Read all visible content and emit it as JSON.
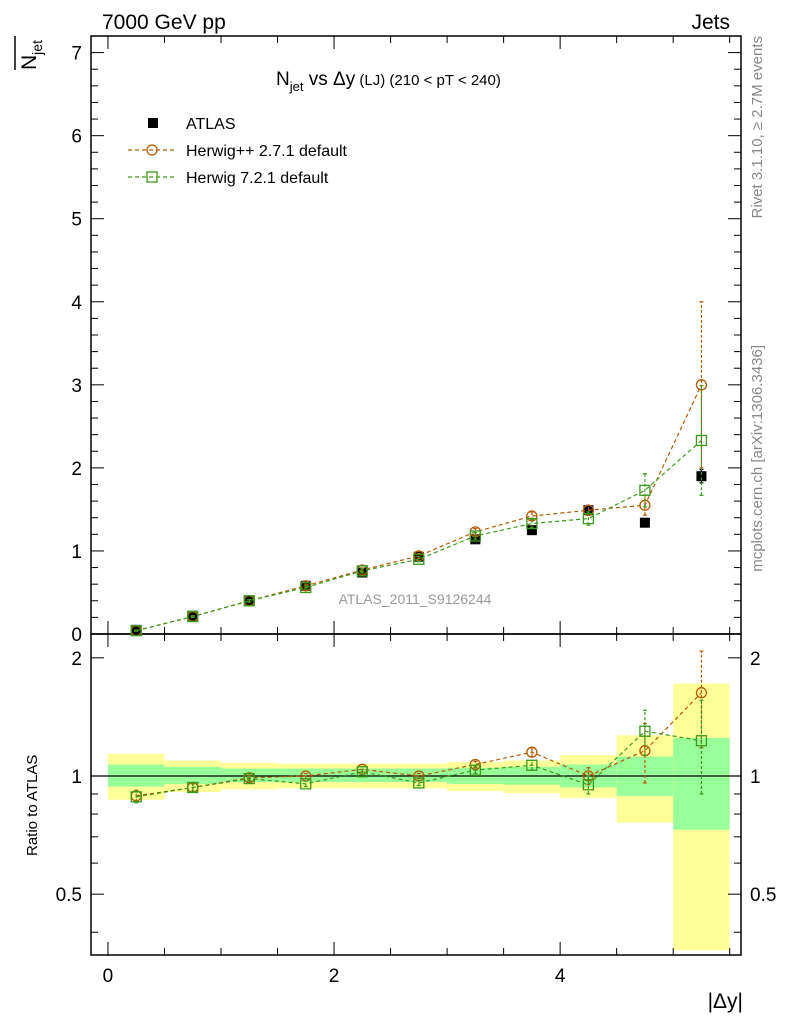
{
  "header": {
    "left_title": "7000 GeV pp",
    "right_title": "Jets",
    "plot_title_main": "N",
    "plot_title_sub": "jet",
    "plot_title_vs": " vs Δy",
    "plot_title_lj": " (LJ)",
    "plot_title_range": " (210 < pT < 240)",
    "watermark": "ATLAS_2011_S9126244",
    "side_rivet": "Rivet 3.1.10, ≥ 2.7M events",
    "side_mcplots": "mcplots.cern.ch [arXiv:1306.3436]"
  },
  "axes": {
    "ylabel_main": "N",
    "ylabel_main_sub": "jet",
    "ylabel_ratio": "Ratio to ATLAS",
    "xlabel": "|Δy|"
  },
  "colors": {
    "atlas": "#000000",
    "herwigpp": "#b35900",
    "herwig7": "#3a9a1a",
    "band_inner": "#99ff99",
    "band_outer": "#ffff99"
  },
  "chart_data": [
    {
      "type": "scatter",
      "name": "main",
      "x": [
        0.25,
        0.75,
        1.25,
        1.75,
        2.25,
        2.75,
        3.25,
        3.75,
        4.25,
        4.75,
        5.25
      ],
      "xlim": [
        -0.15,
        5.6
      ],
      "ylim": [
        0,
        7.2
      ],
      "xticks": [
        0,
        2,
        4
      ],
      "yticks": [
        0,
        1,
        2,
        3,
        4,
        5,
        6,
        7
      ],
      "ytick_labels": [
        "0",
        "1",
        "2",
        "3",
        "4",
        "5",
        "6",
        "7"
      ],
      "legend": [
        "ATLAS",
        "Herwig++ 2.7.1 default",
        "Herwig 7.2.1 default"
      ],
      "legend_position": "top-left",
      "series": [
        {
          "name": "ATLAS",
          "values": [
            0.05,
            0.22,
            0.4,
            0.58,
            0.74,
            0.93,
            1.14,
            1.25,
            1.49,
            1.34,
            1.9
          ],
          "errors": [
            0.01,
            0.01,
            0.02,
            0.02,
            0.02,
            0.03,
            0.04,
            0.04,
            0.06,
            0.05,
            0.08
          ]
        },
        {
          "name": "Herwig++ 2.7.1 default",
          "values": [
            0.04,
            0.21,
            0.4,
            0.58,
            0.77,
            0.94,
            1.23,
            1.42,
            1.49,
            1.55,
            3.0
          ],
          "errors": [
            0.005,
            0.01,
            0.015,
            0.02,
            0.025,
            0.03,
            0.04,
            0.05,
            0.06,
            0.12,
            1.0
          ]
        },
        {
          "name": "Herwig 7.2.1 default",
          "values": [
            0.04,
            0.21,
            0.4,
            0.56,
            0.76,
            0.9,
            1.18,
            1.33,
            1.39,
            1.73,
            2.33
          ],
          "errors": [
            0.005,
            0.01,
            0.015,
            0.02,
            0.025,
            0.03,
            0.04,
            0.05,
            0.08,
            0.2,
            0.66
          ]
        }
      ]
    },
    {
      "type": "scatter",
      "name": "ratio",
      "x": [
        0.25,
        0.75,
        1.25,
        1.75,
        2.25,
        2.75,
        3.25,
        3.75,
        4.25,
        4.75,
        5.25
      ],
      "bins": [
        [
          0,
          0.5
        ],
        [
          0.5,
          1.0
        ],
        [
          1.0,
          1.5
        ],
        [
          1.5,
          2.0
        ],
        [
          2.0,
          2.5
        ],
        [
          2.5,
          3.0
        ],
        [
          3.0,
          3.5
        ],
        [
          3.5,
          4.0
        ],
        [
          4.0,
          4.5
        ],
        [
          4.5,
          5.0
        ],
        [
          5.0,
          5.5
        ]
      ],
      "xlim": [
        -0.15,
        5.6
      ],
      "ylim": [
        0.35,
        2.3
      ],
      "ylog": true,
      "yticks": [
        0.5,
        1,
        2
      ],
      "ytick_labels": [
        "0.5",
        "1",
        "2"
      ],
      "xtick_labels": [
        "0",
        "2",
        "4"
      ],
      "band_inner": [
        [
          0.94,
          1.07
        ],
        [
          0.955,
          1.055
        ],
        [
          0.965,
          1.045
        ],
        [
          0.965,
          1.045
        ],
        [
          0.965,
          1.045
        ],
        [
          0.965,
          1.045
        ],
        [
          0.955,
          1.05
        ],
        [
          0.95,
          1.055
        ],
        [
          0.935,
          1.07
        ],
        [
          0.89,
          1.12
        ],
        [
          0.73,
          1.25
        ]
      ],
      "band_outer": [
        [
          0.87,
          1.14
        ],
        [
          0.91,
          1.095
        ],
        [
          0.925,
          1.08
        ],
        [
          0.93,
          1.075
        ],
        [
          0.93,
          1.075
        ],
        [
          0.93,
          1.075
        ],
        [
          0.915,
          1.085
        ],
        [
          0.905,
          1.095
        ],
        [
          0.88,
          1.13
        ],
        [
          0.76,
          1.27
        ],
        [
          0.36,
          1.72
        ]
      ],
      "series": [
        {
          "name": "Herwig++ 2.7.1 default",
          "values": [
            0.89,
            0.935,
            0.99,
            1.0,
            1.04,
            1.0,
            1.07,
            1.15,
            1.0,
            1.16,
            1.63
          ],
          "errors": [
            0.03,
            0.02,
            0.015,
            0.015,
            0.015,
            0.015,
            0.02,
            0.03,
            0.05,
            0.2,
            0.45
          ]
        },
        {
          "name": "Herwig 7.2.1 default",
          "values": [
            0.885,
            0.935,
            0.985,
            0.955,
            1.025,
            0.96,
            1.035,
            1.065,
            0.95,
            1.3,
            1.23
          ],
          "errors": [
            0.03,
            0.02,
            0.015,
            0.015,
            0.015,
            0.015,
            0.02,
            0.03,
            0.05,
            0.17,
            0.33
          ]
        }
      ]
    }
  ]
}
